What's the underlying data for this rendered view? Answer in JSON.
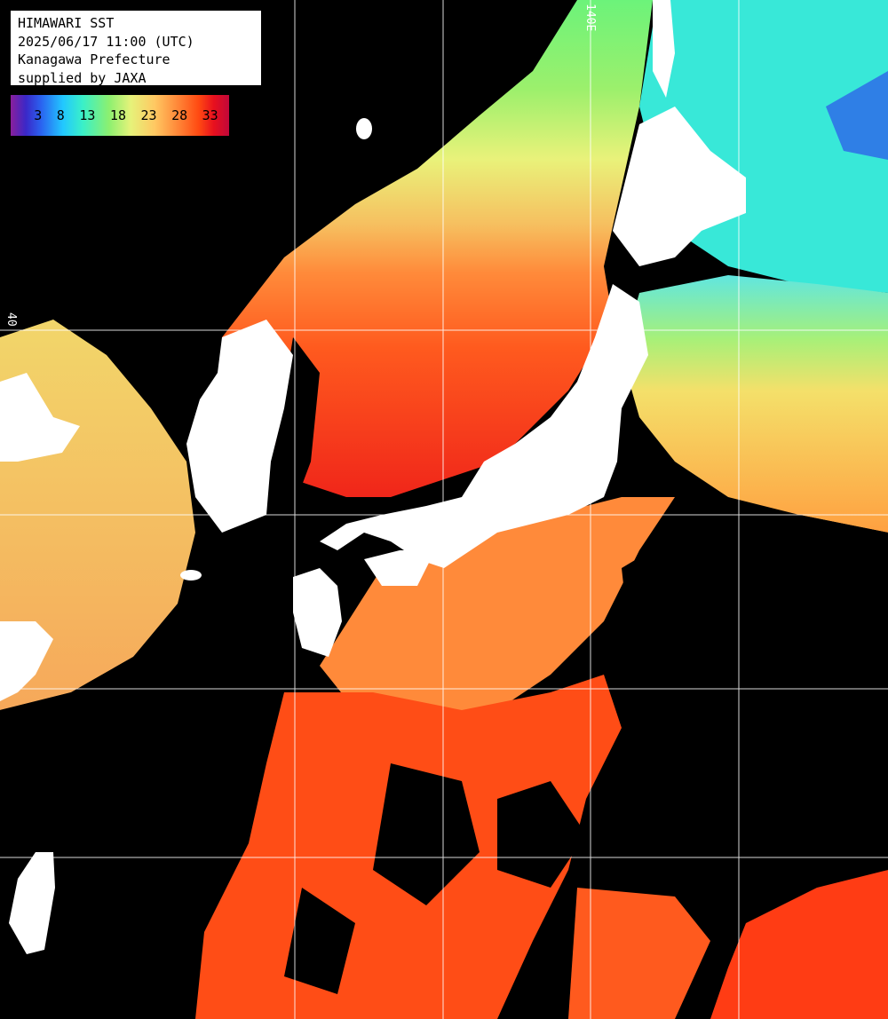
{
  "header": {
    "title": "HIMAWARI SST",
    "datetime": "2025/06/17 11:00 (UTC)",
    "region": "Kanagawa Prefecture",
    "credit": "supplied by JAXA"
  },
  "legend": {
    "ticks": [
      "3",
      "8",
      "13",
      "18",
      "23",
      "28",
      "33"
    ],
    "colors": [
      "#8a1f9c",
      "#2a63f0",
      "#22c8ff",
      "#8cf070",
      "#ffc862",
      "#ff8a3a",
      "#e8101e",
      "#c0083a"
    ]
  },
  "grid_labels": {
    "lon": "140E",
    "lat": "40"
  },
  "colors": {
    "land": "#ffffff",
    "cloud": "#000000",
    "grid": "#ffffff"
  }
}
